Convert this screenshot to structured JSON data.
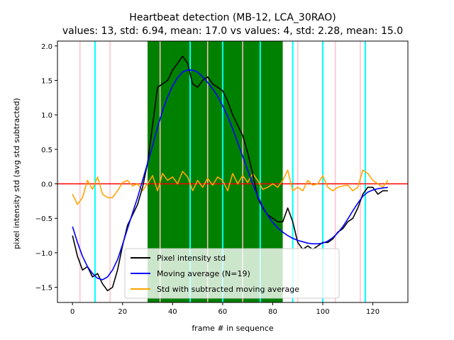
{
  "chart_data": {
    "type": "line",
    "title": "Heartbeat detection (MB-12, LCA_30RAO)",
    "subtitle": "values: 13, std: 6.94, mean: 17.0 vs values: 4, std: 2.28, mean: 15.0",
    "xlabel": "frame # in sequence",
    "ylabel": "pixel intensity std (avg std subtracted)",
    "xlim": [
      -6,
      134
    ],
    "ylim": [
      -1.72,
      2.07
    ],
    "xticks": [
      0,
      20,
      40,
      60,
      80,
      100,
      120
    ],
    "yticks": [
      -1.5,
      -1.0,
      -0.5,
      0.0,
      0.5,
      1.0,
      1.5,
      2.0
    ],
    "xtick_labels": [
      "0",
      "20",
      "40",
      "60",
      "80",
      "100",
      "120"
    ],
    "ytick_labels": [
      "−1.5",
      "−1.0",
      "−0.5",
      "0.0",
      "0.5",
      "1.0",
      "1.5",
      "2.0"
    ],
    "highlight_span": {
      "x0": 30,
      "x1": 84,
      "color": "#008000"
    },
    "zero_line": {
      "y": 0,
      "color": "#ff0000"
    },
    "pink_lines": [
      3,
      15,
      35,
      54,
      68,
      90,
      105,
      115
    ],
    "pink_color": "#ffc0cb",
    "cyan_lines": [
      9,
      47,
      60,
      75,
      88,
      100,
      117
    ],
    "cyan_color": "#00ffff",
    "series": [
      {
        "name": "Pixel intensity std",
        "color": "#000000",
        "x": [
          0,
          2,
          4,
          6,
          8,
          10,
          12,
          14,
          16,
          18,
          20,
          22,
          24,
          26,
          28,
          30,
          32,
          34,
          36,
          38,
          40,
          42,
          44,
          46,
          48,
          50,
          52,
          54,
          56,
          58,
          60,
          62,
          64,
          66,
          68,
          70,
          72,
          74,
          76,
          78,
          80,
          82,
          84,
          86,
          88,
          90,
          92,
          94,
          96,
          98,
          100,
          102,
          104,
          106,
          108,
          110,
          112,
          114,
          116,
          118,
          120,
          122,
          124,
          126
        ],
        "y": [
          -0.75,
          -1.05,
          -1.25,
          -1.2,
          -1.35,
          -1.3,
          -1.45,
          -1.55,
          -1.5,
          -1.25,
          -0.9,
          -0.6,
          -0.45,
          -0.3,
          -0.05,
          0.3,
          0.85,
          1.4,
          1.45,
          1.5,
          1.65,
          1.75,
          1.85,
          1.75,
          1.45,
          1.4,
          1.5,
          1.55,
          1.45,
          1.4,
          1.35,
          1.2,
          1.0,
          0.85,
          0.7,
          0.45,
          0.15,
          -0.2,
          -0.35,
          -0.45,
          -0.5,
          -0.55,
          -0.55,
          -0.35,
          -0.55,
          -0.85,
          -0.95,
          -0.9,
          -0.95,
          -0.9,
          -0.85,
          -0.85,
          -0.8,
          -0.7,
          -0.65,
          -0.55,
          -0.5,
          -0.35,
          -0.15,
          -0.05,
          -0.05,
          -0.15,
          -0.1,
          -0.1
        ]
      },
      {
        "name": "Moving average (N=19)",
        "color": "#0000ff",
        "x": [
          0,
          2,
          4,
          6,
          8,
          10,
          12,
          14,
          16,
          18,
          20,
          22,
          24,
          26,
          28,
          30,
          32,
          34,
          36,
          38,
          40,
          42,
          44,
          46,
          48,
          50,
          52,
          54,
          56,
          58,
          60,
          62,
          64,
          66,
          68,
          70,
          72,
          74,
          76,
          78,
          80,
          82,
          84,
          86,
          88,
          90,
          92,
          94,
          96,
          98,
          100,
          102,
          104,
          106,
          108,
          110,
          112,
          114,
          116,
          118,
          120,
          122,
          124,
          126
        ],
        "y": [
          -0.62,
          -0.85,
          -1.05,
          -1.2,
          -1.3,
          -1.37,
          -1.39,
          -1.35,
          -1.25,
          -1.1,
          -0.88,
          -0.65,
          -0.42,
          -0.2,
          0.05,
          0.3,
          0.55,
          0.82,
          1.06,
          1.26,
          1.42,
          1.54,
          1.62,
          1.65,
          1.65,
          1.62,
          1.55,
          1.47,
          1.38,
          1.27,
          1.13,
          0.98,
          0.8,
          0.6,
          0.4,
          0.2,
          0.0,
          -0.18,
          -0.33,
          -0.46,
          -0.56,
          -0.64,
          -0.7,
          -0.75,
          -0.79,
          -0.82,
          -0.84,
          -0.86,
          -0.87,
          -0.87,
          -0.86,
          -0.83,
          -0.78,
          -0.71,
          -0.62,
          -0.51,
          -0.39,
          -0.28,
          -0.18,
          -0.12,
          -0.09,
          -0.07,
          -0.06,
          -0.05
        ]
      },
      {
        "name": "Std with subtracted moving average",
        "color": "#ffa500",
        "x": [
          0,
          2,
          4,
          6,
          8,
          10,
          12,
          14,
          16,
          18,
          20,
          22,
          24,
          26,
          28,
          30,
          32,
          34,
          36,
          38,
          40,
          42,
          44,
          46,
          48,
          50,
          52,
          54,
          56,
          58,
          60,
          62,
          64,
          66,
          68,
          70,
          72,
          74,
          76,
          78,
          80,
          82,
          84,
          86,
          88,
          90,
          92,
          94,
          96,
          98,
          100,
          102,
          104,
          106,
          108,
          110,
          112,
          114,
          116,
          118,
          120,
          122,
          124,
          126
        ],
        "y": [
          -0.15,
          -0.3,
          -0.2,
          0.05,
          -0.08,
          0.1,
          -0.15,
          -0.2,
          -0.2,
          -0.1,
          0.02,
          0.05,
          -0.03,
          0.0,
          -0.1,
          0.0,
          0.12,
          -0.1,
          0.15,
          0.05,
          0.1,
          0.0,
          0.18,
          0.1,
          -0.1,
          0.05,
          -0.05,
          0.08,
          -0.02,
          0.1,
          0.05,
          -0.1,
          0.15,
          0.0,
          0.12,
          0.02,
          0.15,
          0.05,
          -0.08,
          -0.05,
          0.0,
          -0.05,
          0.05,
          0.2,
          -0.1,
          -0.05,
          -0.1,
          0.05,
          -0.02,
          0.0,
          0.12,
          -0.05,
          -0.1,
          -0.05,
          -0.03,
          -0.02,
          -0.1,
          -0.05,
          0.2,
          0.15,
          0.05,
          0.0,
          -0.05,
          0.05
        ]
      }
    ],
    "legend": {
      "placement": "lower center",
      "entries": [
        "Pixel intensity std",
        "Moving average (N=19)",
        "Std with subtracted moving average"
      ]
    }
  }
}
